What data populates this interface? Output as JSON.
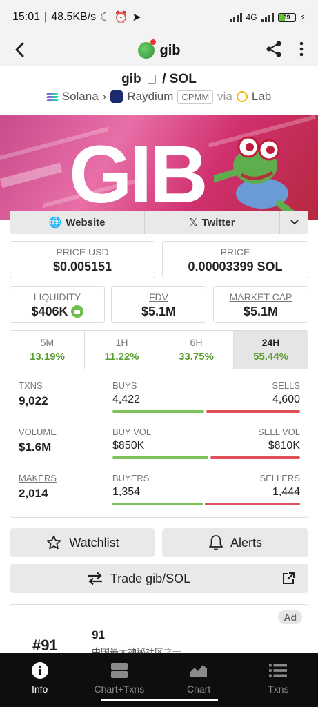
{
  "status": {
    "time": "15:01",
    "speed": "48.5KB/s",
    "network": "4G",
    "battery": "39"
  },
  "header": {
    "title": "gib"
  },
  "pair": {
    "base": "gib",
    "sep": " / ",
    "quote": "SOL",
    "chain": "Solana",
    "dex": "Raydium",
    "pool_type": "CPMM",
    "via_label": "via",
    "via": "Lab"
  },
  "banner": {
    "text": "GIB"
  },
  "links": {
    "website": "Website",
    "twitter": "Twitter"
  },
  "price": {
    "usd_label": "PRICE USD",
    "usd_value": "$0.005151",
    "native_label": "PRICE",
    "native_value": "0.00003399 SOL"
  },
  "metrics": {
    "liquidity_label": "LIQUIDITY",
    "liquidity_value": "$406K",
    "fdv_label": "FDV",
    "fdv_value": "$5.1M",
    "mcap_label": "MARKET CAP",
    "mcap_value": "$5.1M"
  },
  "timeframes": [
    {
      "label": "5M",
      "change": "13.19%"
    },
    {
      "label": "1H",
      "change": "11.22%"
    },
    {
      "label": "6H",
      "change": "33.75%"
    },
    {
      "label": "24H",
      "change": "55.44%"
    }
  ],
  "stats": {
    "txns_label": "TXNS",
    "txns_value": "9,022",
    "volume_label": "VOLUME",
    "volume_value": "$1.6M",
    "makers_label": "MAKERS",
    "makers_value": "2,014",
    "buys_label": "BUYS",
    "buys_value": "4,422",
    "sells_label": "SELLS",
    "sells_value": "4,600",
    "buys_share": 0.49,
    "buyvol_label": "BUY VOL",
    "buyvol_value": "$850K",
    "sellvol_label": "SELL VOL",
    "sellvol_value": "$810K",
    "buyvol_share": 0.51,
    "buyers_label": "BUYERS",
    "buyers_value": "1,354",
    "sellers_label": "SELLERS",
    "sellers_value": "1,444",
    "buyers_share": 0.48
  },
  "actions": {
    "watchlist": "Watchlist",
    "alerts": "Alerts",
    "trade": "Trade gib/SOL"
  },
  "ad": {
    "badge": "Ad",
    "rank": "#91",
    "name": "91",
    "description": "中国最大神秘社区之一"
  },
  "nav": [
    {
      "label": "Info"
    },
    {
      "label": "Chart+Txns"
    },
    {
      "label": "Chart"
    },
    {
      "label": "Txns"
    }
  ],
  "colors": {
    "positive": "#5a9e2f",
    "buy_bar": "#7ec25a",
    "sell_bar": "#e0505b"
  }
}
